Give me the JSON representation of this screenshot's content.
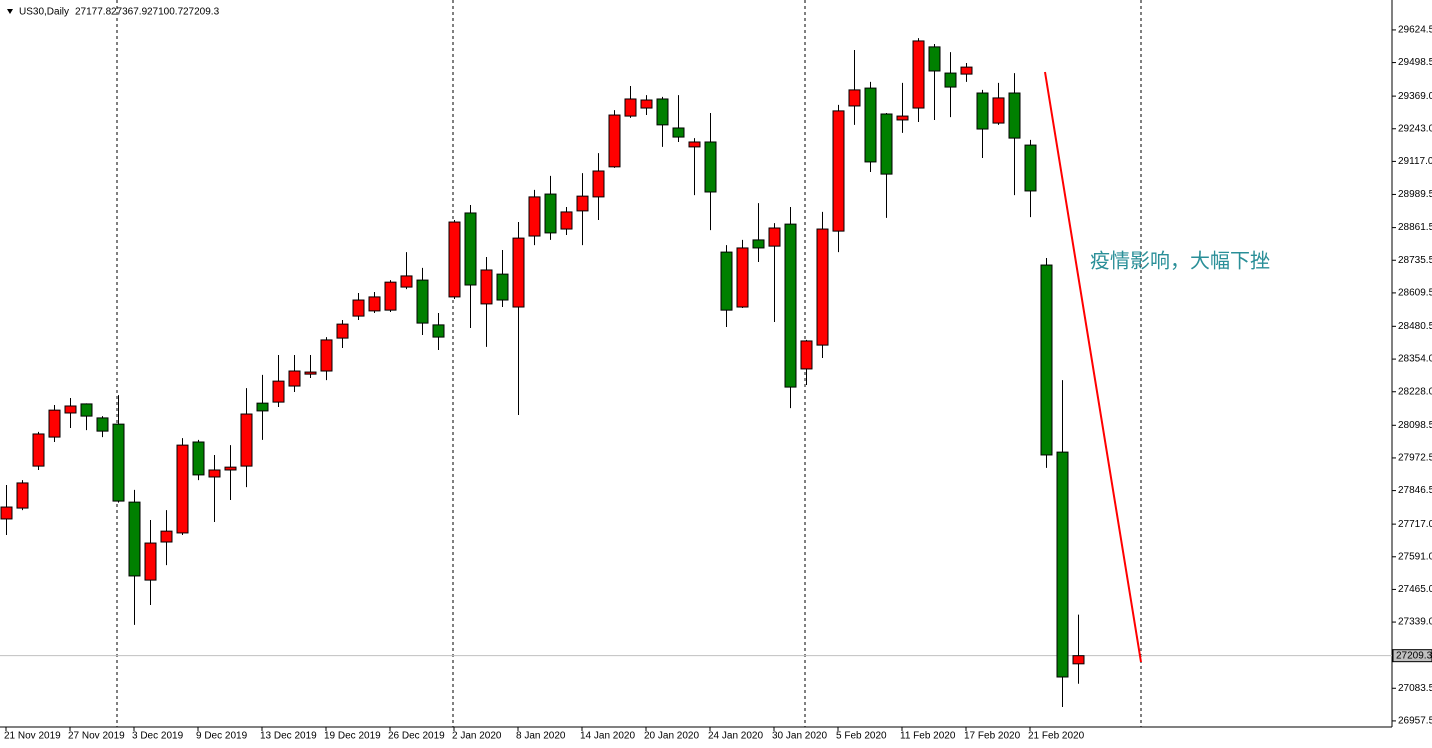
{
  "chart_data": {
    "type": "candlestick",
    "title": "US30,Daily",
    "annotation": "疫情影响，大幅下挫",
    "up_color": "#ff0000",
    "down_color": "#008000",
    "categories": [
      "21 Nov 2019",
      null,
      null,
      null,
      "27 Nov 2019",
      null,
      null,
      null,
      "3 Dec 2019",
      null,
      null,
      null,
      "9 Dec 2019",
      null,
      null,
      null,
      "13 Dec 2019",
      null,
      null,
      null,
      "19 Dec 2019",
      null,
      null,
      null,
      "26 Dec 2019",
      null,
      null,
      null,
      "2 Jan 2020",
      null,
      null,
      null,
      "8 Jan 2020",
      null,
      null,
      null,
      "14 Jan 2020",
      null,
      null,
      null,
      "20 Jan 2020",
      null,
      null,
      null,
      "24 Jan 2020",
      null,
      null,
      null,
      "30 Jan 2020",
      null,
      null,
      null,
      "5 Feb 2020",
      null,
      null,
      null,
      "11 Feb 2020",
      null,
      null,
      null,
      "17 Feb 2020",
      null,
      null,
      null,
      "21 Feb 2020",
      null,
      null,
      null
    ],
    "open": [
      27737,
      27779,
      27941,
      28053,
      28146,
      28181,
      28127,
      28103,
      27802,
      27501,
      27648,
      27683,
      28034,
      27899,
      27926,
      27941,
      28184,
      28188,
      28250,
      28296,
      28308,
      28435,
      28520,
      28540,
      28543,
      28632,
      28659,
      28486,
      28594,
      28918,
      28567,
      28682,
      28555,
      28829,
      28991,
      28856,
      28926,
      28980,
      29096,
      29292,
      29323,
      29358,
      29246,
      29173,
      29192,
      28767,
      28555,
      28814,
      28790,
      28875,
      28316,
      28408,
      28848,
      29331,
      29400,
      29300,
      29277,
      29323,
      29559,
      29458,
      29454,
      29381,
      29265,
      29381,
      29180,
      28717,
      27995,
      27177.8
    ],
    "high": [
      27868,
      27887,
      28073,
      28177,
      28204,
      28183,
      28134,
      28215,
      27849,
      27733,
      27771,
      28049,
      28042,
      27984,
      28022,
      28242,
      28293,
      28370,
      28370,
      28370,
      28439,
      28505,
      28609,
      28613,
      28659,
      28767,
      28706,
      28532,
      28891,
      28949,
      28748,
      28775,
      28883,
      29007,
      29061,
      28941,
      29072,
      29149,
      29315,
      29408,
      29373,
      29366,
      29373,
      29207,
      29304,
      28794,
      28814,
      28956,
      28879,
      28941,
      28428,
      28922,
      29335,
      29547,
      29424,
      29304,
      29420,
      29593,
      29570,
      29539,
      29497,
      29393,
      29420,
      29458,
      29200,
      28744,
      28273,
      27367.9
    ],
    "low": [
      27675,
      27771,
      27926,
      28034,
      28088,
      28080,
      28053,
      27800,
      27328,
      27405,
      27559,
      27675,
      27887,
      27725,
      27810,
      27860,
      28042,
      28169,
      28227,
      28281,
      28273,
      28397,
      28505,
      28532,
      28536,
      28624,
      28447,
      28389,
      28586,
      28474,
      28401,
      28555,
      28138,
      28794,
      28814,
      28833,
      28794,
      28891,
      29092,
      29285,
      29296,
      29173,
      29192,
      28987,
      28852,
      28478,
      28551,
      28729,
      28497,
      28165,
      28254,
      28358,
      28767,
      29258,
      29076,
      28899,
      29227,
      29269,
      29277,
      29288,
      29424,
      29130,
      29258,
      28987,
      28902,
      27934,
      27011,
      27100.7
    ],
    "close": [
      27783,
      27876,
      28065,
      28157,
      28173,
      28134,
      28076,
      27806,
      27517,
      27644,
      27690,
      28022,
      27907,
      27926,
      27937,
      28142,
      28154,
      28269,
      28308,
      28304,
      28428,
      28489,
      28582,
      28594,
      28651,
      28675,
      28493,
      28439,
      28883,
      28640,
      28698,
      28582,
      28821,
      28980,
      28841,
      28922,
      28983,
      29080,
      29296,
      29358,
      29354,
      29258,
      29211,
      29192,
      28999,
      28543,
      28783,
      28783,
      28860,
      28246,
      28424,
      28856,
      29312,
      29393,
      29115,
      29068,
      29292,
      29582,
      29466,
      29404,
      29481,
      29242,
      29362,
      29207,
      29003,
      27984,
      27127,
      27209.3
    ],
    "ylim": [
      26934,
      29740
    ],
    "yticks": [
      29624.5,
      29498.5,
      {
        "value": 29369,
        "label": "29369.0"
      },
      {
        "value": 29243,
        "label": "29243.0"
      },
      {
        "value": 29117,
        "label": "29117.0"
      },
      28989.5,
      28861.5,
      28735.5,
      28609.5,
      28480.5,
      {
        "value": 28354,
        "label": "28354.0"
      },
      {
        "value": 28228,
        "label": "28228.0"
      },
      28098.5,
      27972.5,
      27846.5,
      {
        "value": 27717,
        "label": "27717.0"
      },
      {
        "value": 27591,
        "label": "27591.0"
      },
      {
        "value": 27465,
        "label": "27465.0"
      },
      {
        "value": 27339,
        "label": "27339.0"
      },
      27083.5,
      26957.5
    ]
  }
}
